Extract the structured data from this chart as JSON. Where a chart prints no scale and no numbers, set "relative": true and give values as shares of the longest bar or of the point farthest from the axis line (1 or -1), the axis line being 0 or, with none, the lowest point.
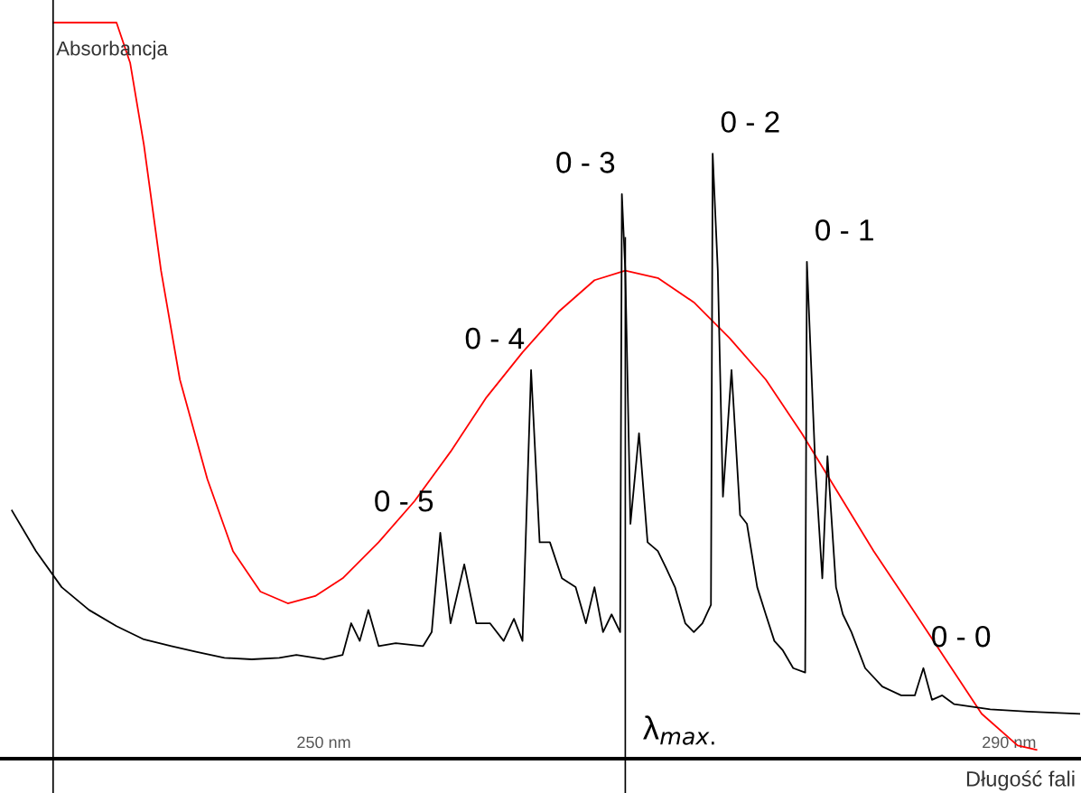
{
  "chart_data": {
    "type": "line",
    "relative": true,
    "xlabel": "Długość fali",
    "ylabel": "Absorbancja",
    "xlim": [
      231.1,
      294.2
    ],
    "xticks": [
      {
        "value": 250,
        "label": "250 nm"
      },
      {
        "value": 290,
        "label": "290 nm"
      }
    ],
    "grid": false,
    "marker": "none",
    "line_style": "solid",
    "series": [
      {
        "color": "#ff0000",
        "x": [
          234.2,
          237.9,
          238.7,
          239.5,
          240.5,
          241.6,
          243.2,
          244.7,
          246.3,
          247.9,
          249.5,
          251.1,
          253.2,
          255.3,
          257.4,
          259.5,
          261.6,
          263.7,
          265.8,
          267.6,
          269.5,
          271.6,
          273.7,
          275.8,
          277.9,
          280.0,
          282.1,
          284.2,
          286.3,
          288.4,
          290.5,
          291.6
        ],
        "values": [
          1.0,
          1.0,
          0.945,
          0.834,
          0.663,
          0.515,
          0.38,
          0.282,
          0.227,
          0.211,
          0.221,
          0.245,
          0.294,
          0.35,
          0.417,
          0.491,
          0.552,
          0.607,
          0.65,
          0.663,
          0.653,
          0.62,
          0.571,
          0.515,
          0.442,
          0.362,
          0.282,
          0.209,
          0.135,
          0.061,
          0.018,
          0.012
        ]
      },
      {
        "color": "#000000",
        "x": [
          231.8,
          233.2,
          234.7,
          236.3,
          237.9,
          239.5,
          241.1,
          242.6,
          244.2,
          245.8,
          247.4,
          248.4,
          250.0,
          251.1,
          251.6,
          252.1,
          252.6,
          253.2,
          254.2,
          255.8,
          256.3,
          256.8,
          257.4,
          258.2,
          258.9,
          259.7,
          260.5,
          261.1,
          261.6,
          262.1,
          262.6,
          263.2,
          263.9,
          264.7,
          265.3,
          265.8,
          266.3,
          266.8,
          267.3,
          267.4,
          267.6,
          267.9,
          268.4,
          268.9,
          269.5,
          270.0,
          270.5,
          271.1,
          271.6,
          272.1,
          272.6,
          272.7,
          273.0,
          273.3,
          273.8,
          274.3,
          274.7,
          275.3,
          275.8,
          276.3,
          276.8,
          277.4,
          278.1,
          278.2,
          278.7,
          279.1,
          279.4,
          279.9,
          280.3,
          280.8,
          281.6,
          282.6,
          283.7,
          284.5,
          285.0,
          285.5,
          286.1,
          286.8,
          288.9,
          291.1,
          294.1
        ],
        "values": [
          0.337,
          0.282,
          0.233,
          0.202,
          0.18,
          0.162,
          0.153,
          0.145,
          0.137,
          0.135,
          0.137,
          0.141,
          0.135,
          0.141,
          0.184,
          0.16,
          0.202,
          0.153,
          0.157,
          0.153,
          0.172,
          0.307,
          0.184,
          0.264,
          0.184,
          0.184,
          0.16,
          0.19,
          0.16,
          0.528,
          0.294,
          0.294,
          0.245,
          0.233,
          0.184,
          0.233,
          0.172,
          0.196,
          0.172,
          0.767,
          0.663,
          0.319,
          0.442,
          0.294,
          0.282,
          0.258,
          0.233,
          0.184,
          0.172,
          0.184,
          0.209,
          0.822,
          0.663,
          0.356,
          0.528,
          0.331,
          0.319,
          0.233,
          0.196,
          0.16,
          0.147,
          0.123,
          0.117,
          0.675,
          0.393,
          0.245,
          0.411,
          0.233,
          0.196,
          0.172,
          0.123,
          0.098,
          0.086,
          0.086,
          0.123,
          0.08,
          0.086,
          0.074,
          0.067,
          0.064,
          0.061
        ]
      }
    ],
    "ref_lines": [
      {
        "axis": "x",
        "value": 234.2,
        "color": "#000000"
      },
      {
        "axis": "x",
        "value": 267.6,
        "label": "λ$_{max.}$",
        "color": "#000000"
      }
    ],
    "annotations": [
      {
        "text": "0 - 5",
        "x": 256.8,
        "y": 0.307
      },
      {
        "text": "0 - 4",
        "x": 262.1,
        "y": 0.528
      },
      {
        "text": "0 - 3",
        "x": 267.4,
        "y": 0.767
      },
      {
        "text": "0 - 2",
        "x": 272.7,
        "y": 0.822
      },
      {
        "text": "0 - 1",
        "x": 278.2,
        "y": 0.675
      },
      {
        "text": "0 - 0",
        "x": 285.0,
        "y": 0.123
      }
    ]
  }
}
